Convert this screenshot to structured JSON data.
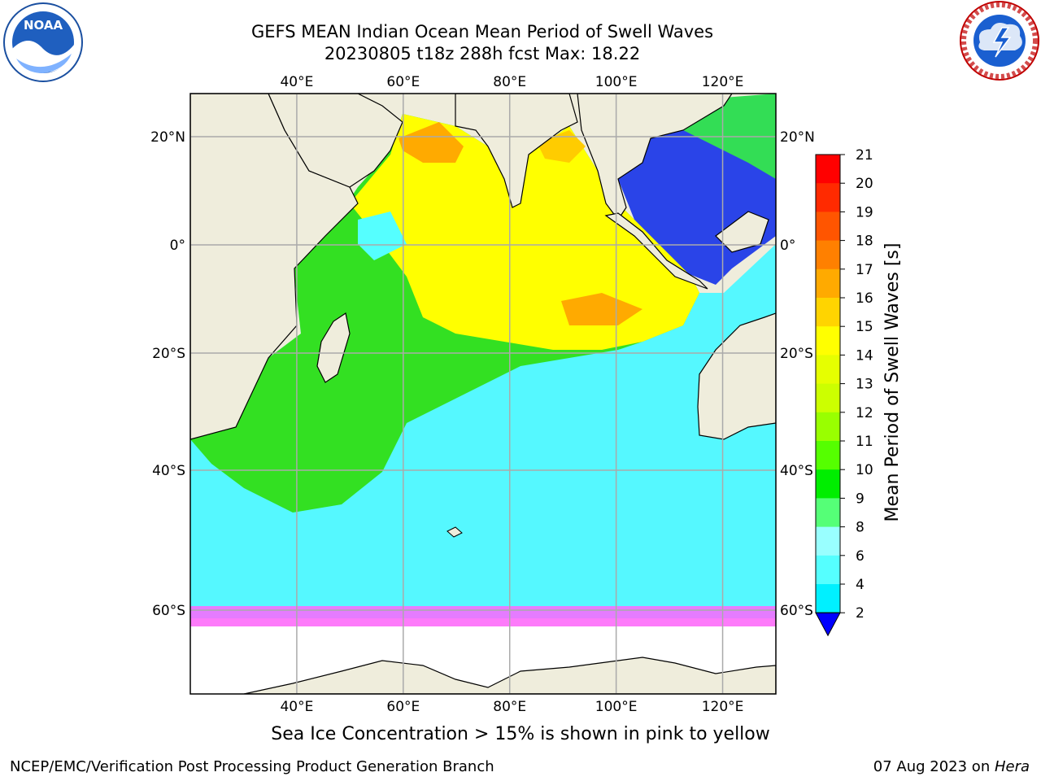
{
  "title": {
    "line1": "GEFS MEAN Indian Ocean Mean Period of Swell Waves",
    "line2": "20230805 t18z 288h fcst   Max: 18.22"
  },
  "logos": {
    "left": "NOAA",
    "left_ring": "NATIONAL OCEANIC AND ATMOSPHERIC ADMINISTRATION · U.S. DEPARTMENT OF COMMERCE",
    "right_ring": "NATIONAL WEATHER SERVICE"
  },
  "map": {
    "lon_labels_top": [
      "40°E",
      "60°E",
      "80°E",
      "100°E",
      "120°E"
    ],
    "lon_labels_bottom": [
      "40°E",
      "60°E",
      "80°E",
      "100°E",
      "120°E"
    ],
    "lat_labels_left": [
      "20°N",
      "0°",
      "20°S",
      "40°S",
      "60°S"
    ],
    "lat_labels_right": [
      "20°N",
      "0°",
      "20°S",
      "40°S",
      "60°S"
    ],
    "lon_values": [
      40,
      60,
      80,
      100,
      120
    ],
    "lat_values": [
      20,
      0,
      -20,
      -40,
      -60
    ],
    "extent": {
      "lon_min": 20,
      "lon_max": 130,
      "lat_max": 28,
      "lat_min": -72
    }
  },
  "colorbar": {
    "label": "Mean Period of Swell Waves [s]",
    "ticks": [
      "21",
      "20",
      "19",
      "18",
      "17",
      "16",
      "15",
      "14",
      "13",
      "12",
      "11",
      "10",
      "9",
      "8",
      "6",
      "4",
      "2"
    ],
    "colors": [
      "#ff0000",
      "#ff2a00",
      "#ff5500",
      "#ff8000",
      "#ffaa00",
      "#ffd400",
      "#ffff00",
      "#e6ff00",
      "#ccff00",
      "#99ff00",
      "#55ff00",
      "#00ee00",
      "#55ff77",
      "#99ffff",
      "#55ffff",
      "#00f0ff",
      "#00ccff",
      "#0066ff",
      "#0000ff"
    ]
  },
  "ice_note": "Sea Ice Concentration > 15% is shown in pink to yellow",
  "footer": {
    "left": "NCEP/EMC/Verification Post Processing Product Generation Branch",
    "right_prefix": "07 Aug 2023 on ",
    "right_host": "Hera"
  }
}
